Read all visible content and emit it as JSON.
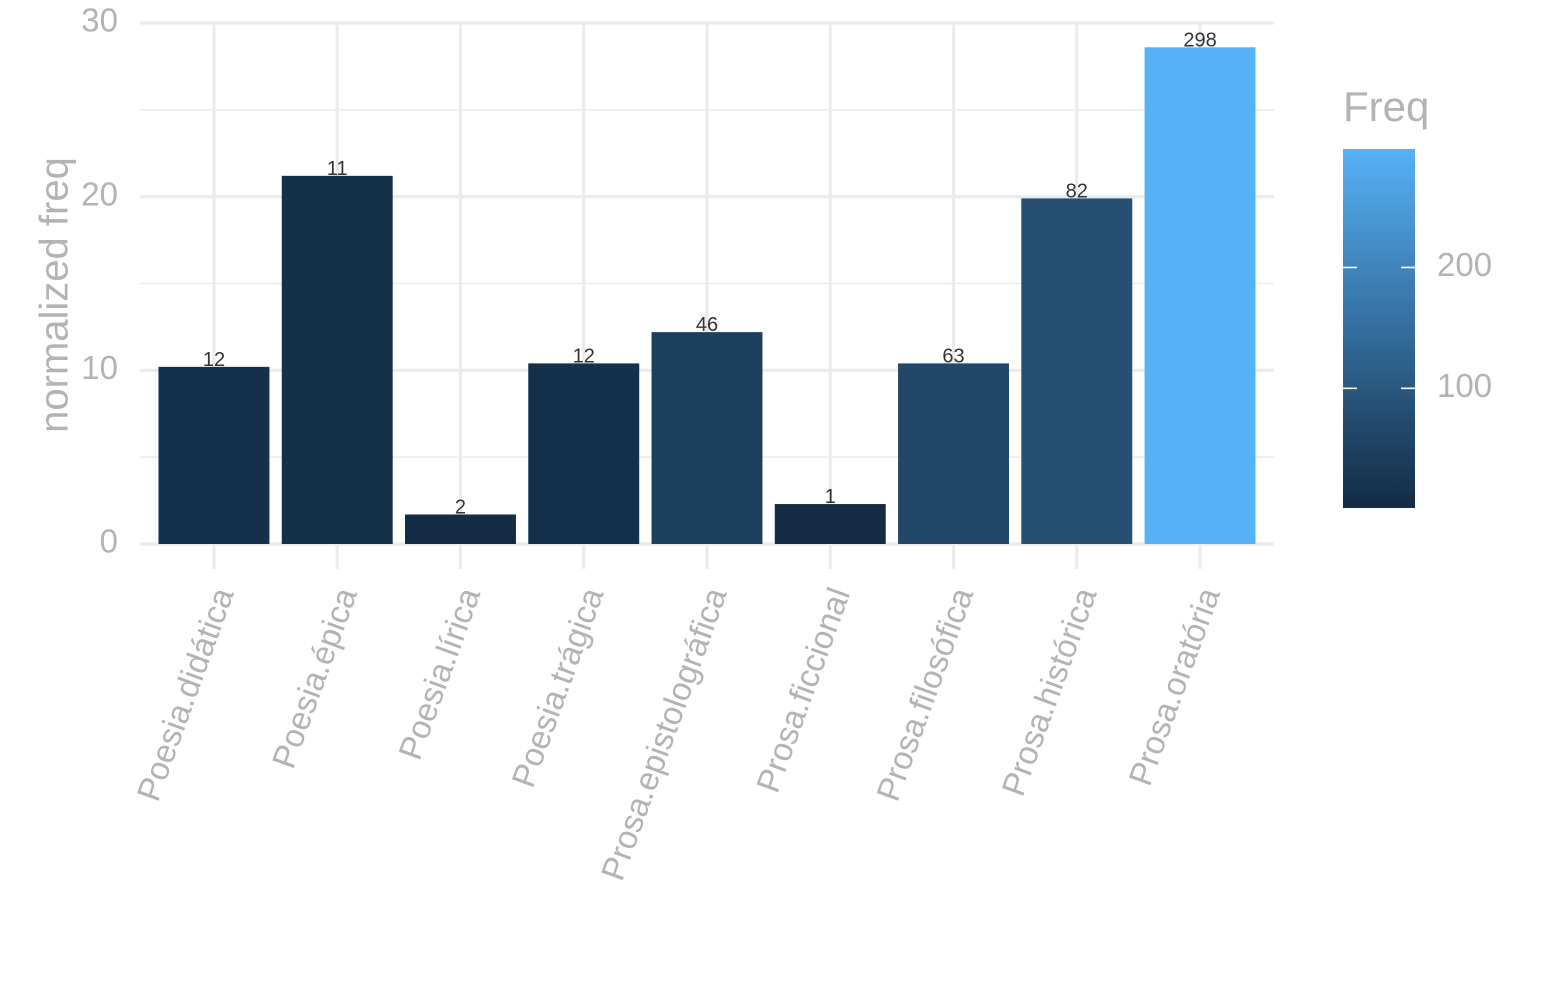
{
  "chart_data": {
    "type": "bar",
    "title": "",
    "xlabel": "",
    "ylabel": "normalized freq",
    "ylim": [
      0,
      30
    ],
    "yticks": [
      0,
      10,
      20,
      30
    ],
    "categories": [
      "Poesia.didática",
      "Poesia.épica",
      "Poesia.lírica",
      "Poesia.trágica",
      "Prosa.epistolográfica",
      "Prosa.ficcional",
      "Prosa.filosófica",
      "Prosa.histórica",
      "Prosa.oratória"
    ],
    "values": [
      10.2,
      21.2,
      1.7,
      10.4,
      12.2,
      2.3,
      10.4,
      19.9,
      28.6
    ],
    "bar_labels": [
      "12",
      "11",
      "2",
      "12",
      "46",
      "1",
      "63",
      "82",
      "298"
    ],
    "fill_values": [
      12,
      11,
      2,
      12,
      46,
      1,
      63,
      82,
      298
    ],
    "grid": true,
    "legend": {
      "title": "Freq",
      "position": "right",
      "ticks": [
        100,
        200
      ],
      "tick_labels": [
        "100",
        "200"
      ],
      "range": [
        1,
        298
      ],
      "low_color": "#132b43",
      "high_color": "#56b1f7"
    }
  }
}
